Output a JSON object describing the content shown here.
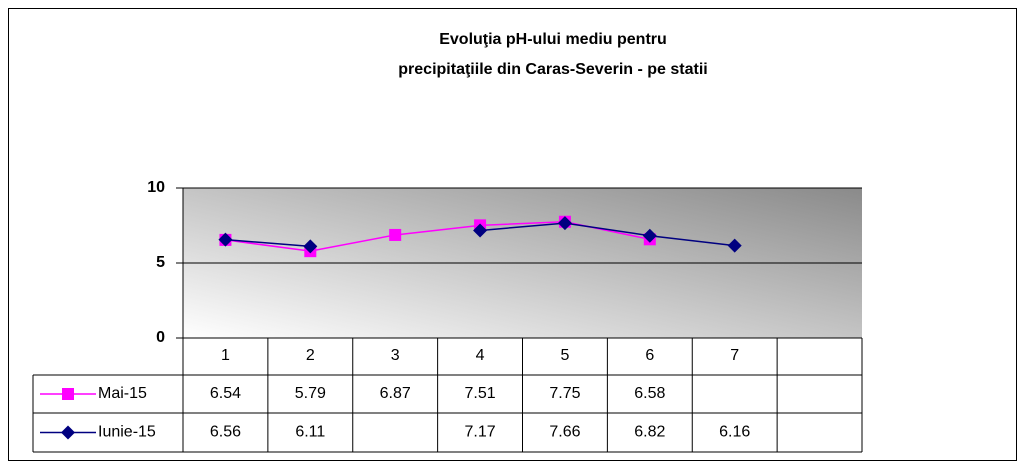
{
  "chart_data": {
    "type": "line",
    "title": [
      "Evoluţia pH-ului mediu pentru",
      "precipitaţiile din Caras-Severin - pe statii"
    ],
    "categories": [
      "1",
      "2",
      "3",
      "4",
      "5",
      "6",
      "7",
      null
    ],
    "series": [
      {
        "name": "Mai-15",
        "color": "#ff00ff",
        "marker": "square",
        "values": [
          6.54,
          5.79,
          6.87,
          7.51,
          7.75,
          6.58,
          null,
          null
        ]
      },
      {
        "name": "Iunie-15",
        "color": "#000080",
        "marker": "diamond",
        "values": [
          6.56,
          6.11,
          null,
          7.17,
          7.66,
          6.82,
          6.16,
          null
        ]
      }
    ],
    "ylim": [
      0,
      10
    ],
    "yticks": [
      0,
      5,
      10
    ],
    "grid": true,
    "data_table": true
  }
}
